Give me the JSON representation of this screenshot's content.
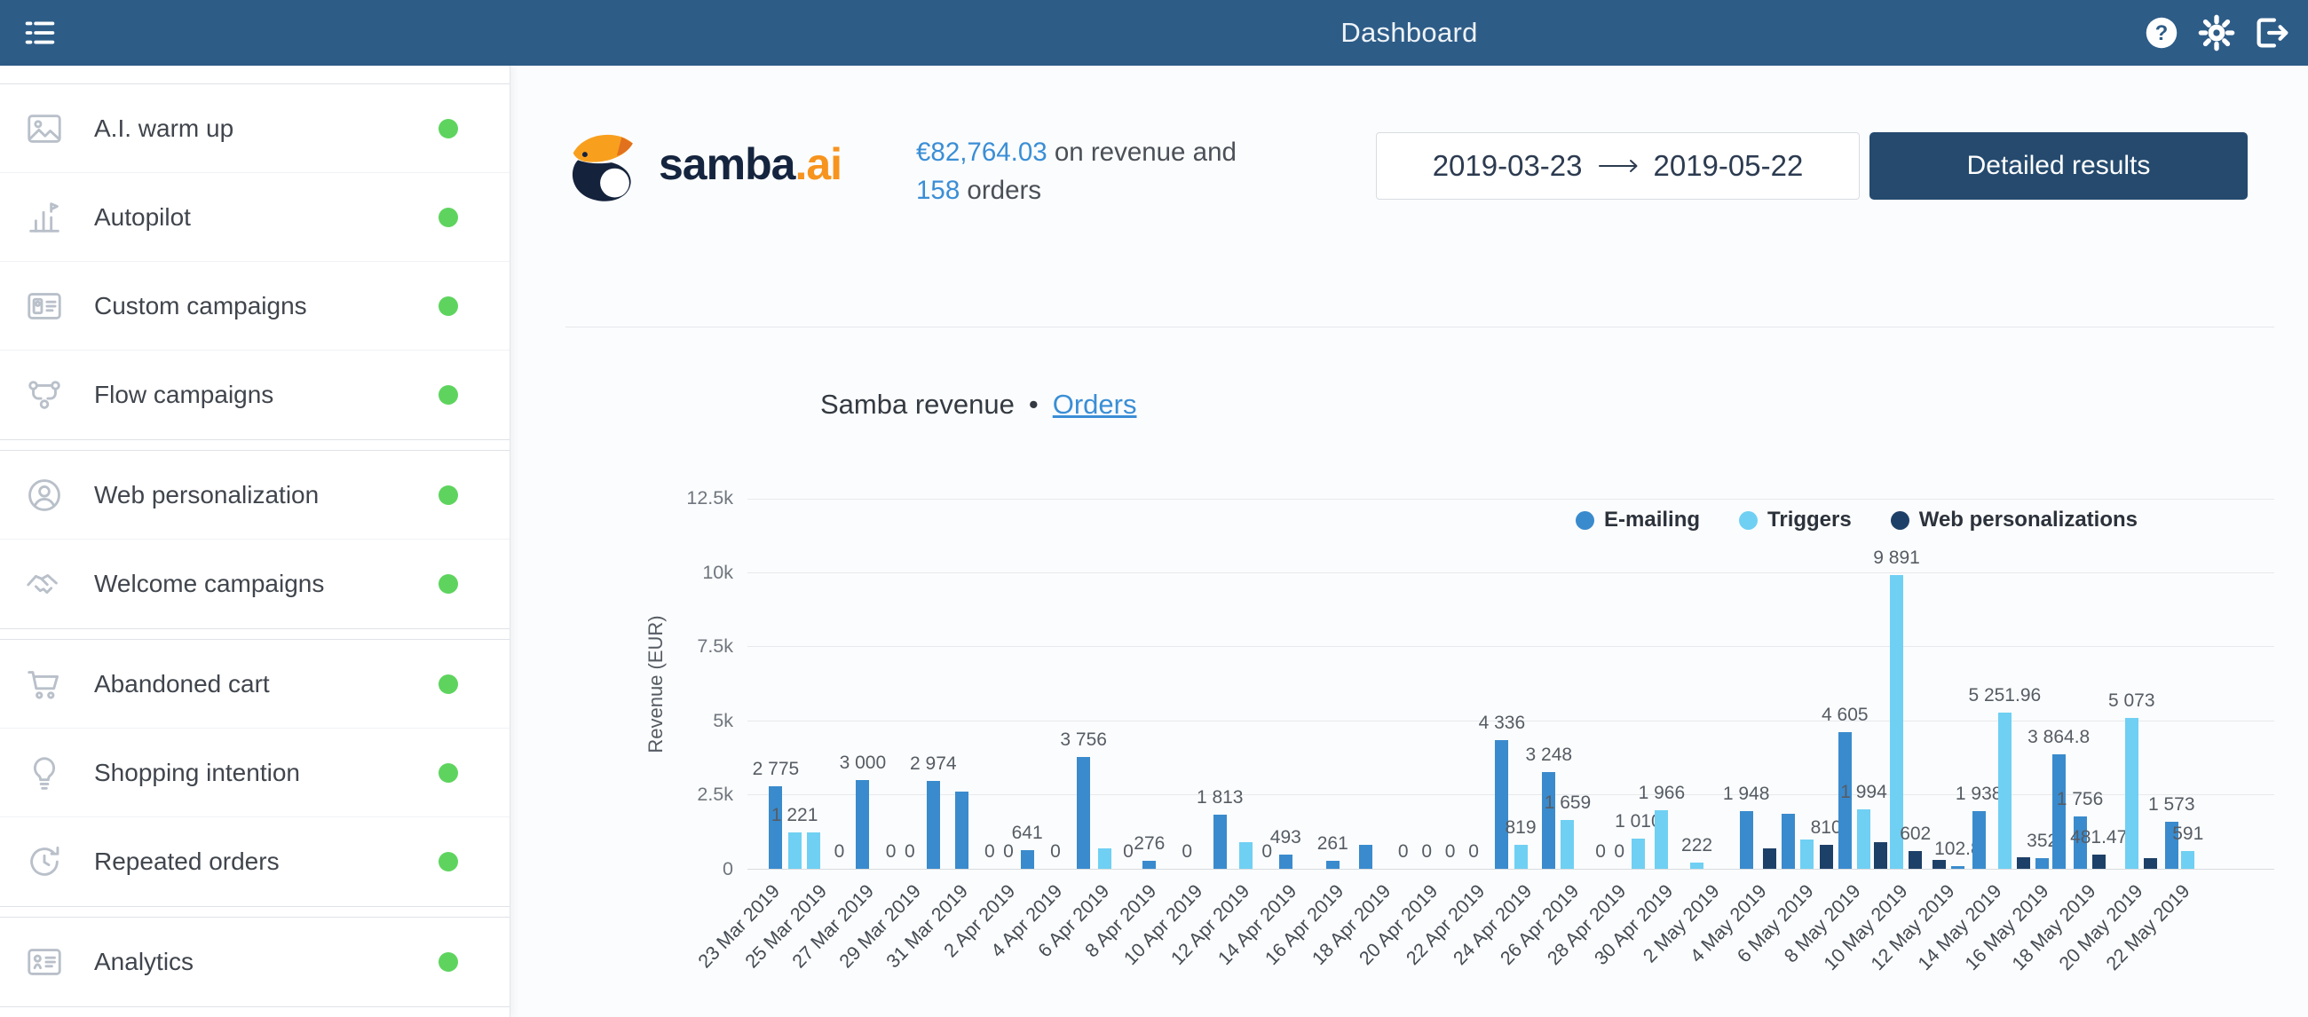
{
  "topbar": {
    "title": "Dashboard"
  },
  "sidebar": {
    "status_color": "#5ed45e",
    "sections": [
      {
        "items": [
          {
            "label": "A.I. warm up",
            "icon": "image-icon"
          },
          {
            "label": "Autopilot",
            "icon": "chart-flag-icon"
          },
          {
            "label": "Custom campaigns",
            "icon": "id-card-icon"
          },
          {
            "label": "Flow campaigns",
            "icon": "flow-icon"
          }
        ]
      },
      {
        "items": [
          {
            "label": "Web personalization",
            "icon": "person-circle-icon"
          },
          {
            "label": "Welcome campaigns",
            "icon": "handshake-icon"
          }
        ]
      },
      {
        "items": [
          {
            "label": "Abandoned cart",
            "icon": "cart-icon"
          },
          {
            "label": "Shopping intention",
            "icon": "bulb-icon"
          },
          {
            "label": "Repeated orders",
            "icon": "refresh-clock-icon"
          }
        ]
      },
      {
        "items": [
          {
            "label": "Analytics",
            "icon": "card-list-icon"
          }
        ]
      }
    ]
  },
  "header": {
    "logo": {
      "name": "samba",
      "tld": ".ai"
    },
    "revenue": {
      "amount": "€82,764.03",
      "text": " on revenue and"
    },
    "orders": {
      "count": "158",
      "text": " orders"
    },
    "date_range": {
      "start": "2019-03-23",
      "end": "2019-05-22"
    },
    "detailed_button": "Detailed results"
  },
  "chart_header": {
    "title": "Samba revenue",
    "bullet": "•",
    "link": "Orders"
  },
  "chart_data": {
    "type": "bar",
    "title": "Samba revenue",
    "ylabel": "Revenue (EUR)",
    "ylim": [
      0,
      12500
    ],
    "grid": true,
    "legend_position": "top-right",
    "yticks": [
      {
        "value": 0,
        "label": "0"
      },
      {
        "value": 2500,
        "label": "2.5k"
      },
      {
        "value": 5000,
        "label": "5k"
      },
      {
        "value": 7500,
        "label": "7.5k"
      },
      {
        "value": 10000,
        "label": "10k"
      },
      {
        "value": 12500,
        "label": "12.5k"
      }
    ],
    "legend": [
      {
        "key": "emailing",
        "name": "E-mailing",
        "color": "#3a8bcd"
      },
      {
        "key": "triggers",
        "name": "Triggers",
        "color": "#6fd0f3"
      },
      {
        "key": "webp",
        "name": "Web personalizations",
        "color": "#1d4068"
      }
    ],
    "xticks": [
      {
        "day": 0,
        "label": "23 Mar 2019"
      },
      {
        "day": 2,
        "label": "25 Mar 2019"
      },
      {
        "day": 4,
        "label": "27 Mar 2019"
      },
      {
        "day": 6,
        "label": "29 Mar 2019"
      },
      {
        "day": 8,
        "label": "31 Mar 2019"
      },
      {
        "day": 10,
        "label": "2 Apr 2019"
      },
      {
        "day": 12,
        "label": "4 Apr 2019"
      },
      {
        "day": 14,
        "label": "6 Apr 2019"
      },
      {
        "day": 16,
        "label": "8 Apr 2019"
      },
      {
        "day": 18,
        "label": "10 Apr 2019"
      },
      {
        "day": 20,
        "label": "12 Apr 2019"
      },
      {
        "day": 22,
        "label": "14 Apr 2019"
      },
      {
        "day": 24,
        "label": "16 Apr 2019"
      },
      {
        "day": 26,
        "label": "18 Apr 2019"
      },
      {
        "day": 28,
        "label": "20 Apr 2019"
      },
      {
        "day": 30,
        "label": "22 Apr 2019"
      },
      {
        "day": 32,
        "label": "24 Apr 2019"
      },
      {
        "day": 34,
        "label": "26 Apr 2019"
      },
      {
        "day": 36,
        "label": "28 Apr 2019"
      },
      {
        "day": 38,
        "label": "30 Apr 2019"
      },
      {
        "day": 40,
        "label": "2 May 2019"
      },
      {
        "day": 42,
        "label": "4 May 2019"
      },
      {
        "day": 44,
        "label": "6 May 2019"
      },
      {
        "day": 46,
        "label": "8 May 2019"
      },
      {
        "day": 48,
        "label": "10 May 2019"
      },
      {
        "day": 50,
        "label": "12 May 2019"
      },
      {
        "day": 52,
        "label": "14 May 2019"
      },
      {
        "day": 54,
        "label": "16 May 2019"
      },
      {
        "day": 56,
        "label": "18 May 2019"
      },
      {
        "day": 58,
        "label": "20 May 2019"
      },
      {
        "day": 60,
        "label": "22 May 2019"
      }
    ],
    "bars": [
      {
        "day": 0.3,
        "series": "emailing",
        "value": 2775,
        "label": "2 775"
      },
      {
        "day": 1.1,
        "series": "triggers",
        "value": 1221,
        "label": "1 221"
      },
      {
        "day": 1.9,
        "series": "triggers",
        "value": 1230
      },
      {
        "day": 3.0,
        "series": "emailing",
        "value": 0,
        "label": "0"
      },
      {
        "day": 4.0,
        "series": "emailing",
        "value": 3000,
        "label": "3 000"
      },
      {
        "day": 5.2,
        "series": "emailing",
        "value": 0,
        "label": "0"
      },
      {
        "day": 6.0,
        "series": "emailing",
        "value": 0,
        "label": "0"
      },
      {
        "day": 7.0,
        "series": "emailing",
        "value": 2974,
        "label": "2 974"
      },
      {
        "day": 8.2,
        "series": "emailing",
        "value": 2600
      },
      {
        "day": 9.4,
        "series": "emailing",
        "value": 0,
        "label": "0"
      },
      {
        "day": 10.2,
        "series": "emailing",
        "value": 0,
        "label": "0"
      },
      {
        "day": 11.0,
        "series": "emailing",
        "value": 641,
        "label": "641"
      },
      {
        "day": 12.2,
        "series": "emailing",
        "value": 0,
        "label": "0"
      },
      {
        "day": 13.4,
        "series": "emailing",
        "value": 3756,
        "label": "3 756"
      },
      {
        "day": 14.3,
        "series": "triggers",
        "value": 700
      },
      {
        "day": 15.3,
        "series": "emailing",
        "value": 0,
        "label": "0"
      },
      {
        "day": 16.2,
        "series": "emailing",
        "value": 276,
        "label": "276"
      },
      {
        "day": 17.8,
        "series": "emailing",
        "value": 0,
        "label": "0"
      },
      {
        "day": 19.2,
        "series": "emailing",
        "value": 1813,
        "label": "1 813"
      },
      {
        "day": 20.3,
        "series": "triggers",
        "value": 900
      },
      {
        "day": 21.2,
        "series": "emailing",
        "value": 0,
        "label": "0"
      },
      {
        "day": 22.0,
        "series": "emailing",
        "value": 493,
        "label": "493"
      },
      {
        "day": 24.0,
        "series": "emailing",
        "value": 261,
        "label": "261"
      },
      {
        "day": 25.4,
        "series": "emailing",
        "value": 800
      },
      {
        "day": 27.0,
        "series": "emailing",
        "value": 0,
        "label": "0"
      },
      {
        "day": 28.0,
        "series": "emailing",
        "value": 0,
        "label": "0"
      },
      {
        "day": 29.0,
        "series": "emailing",
        "value": 0,
        "label": "0"
      },
      {
        "day": 30.0,
        "series": "emailing",
        "value": 0,
        "label": "0"
      },
      {
        "day": 31.2,
        "series": "emailing",
        "value": 4336,
        "label": "4 336"
      },
      {
        "day": 32.0,
        "series": "triggers",
        "value": 819,
        "label": "819"
      },
      {
        "day": 33.2,
        "series": "emailing",
        "value": 3248,
        "label": "3 248"
      },
      {
        "day": 34.0,
        "series": "triggers",
        "value": 1659,
        "label": "1 659"
      },
      {
        "day": 35.4,
        "series": "emailing",
        "value": 0,
        "label": "0"
      },
      {
        "day": 36.2,
        "series": "emailing",
        "value": 0,
        "label": "0"
      },
      {
        "day": 37.0,
        "series": "triggers",
        "value": 1010,
        "label": "1 010"
      },
      {
        "day": 38.0,
        "series": "triggers",
        "value": 1966,
        "label": "1 966"
      },
      {
        "day": 39.5,
        "series": "triggers",
        "value": 222,
        "label": "222"
      },
      {
        "day": 41.6,
        "series": "emailing",
        "value": 1948,
        "label": "1 948"
      },
      {
        "day": 42.6,
        "series": "webp",
        "value": 700
      },
      {
        "day": 43.4,
        "series": "emailing",
        "value": 1850
      },
      {
        "day": 44.2,
        "series": "triggers",
        "value": 1000
      },
      {
        "day": 45.0,
        "series": "webp",
        "value": 810,
        "label": "810"
      },
      {
        "day": 45.8,
        "series": "emailing",
        "value": 4605,
        "label": "4 605"
      },
      {
        "day": 46.6,
        "series": "triggers",
        "value": 1994,
        "label": "1 994"
      },
      {
        "day": 47.3,
        "series": "webp",
        "value": 900
      },
      {
        "day": 48.0,
        "series": "triggers",
        "value": 9891,
        "label": "9 891"
      },
      {
        "day": 48.8,
        "series": "webp",
        "value": 602,
        "label": "602"
      },
      {
        "day": 49.8,
        "series": "webp",
        "value": 300
      },
      {
        "day": 50.6,
        "series": "emailing",
        "value": 102.8,
        "label": "102.8"
      },
      {
        "day": 51.5,
        "series": "emailing",
        "value": 1938,
        "label": "1 938"
      },
      {
        "day": 52.6,
        "series": "triggers",
        "value": 5251.96,
        "label": "5 251.96"
      },
      {
        "day": 53.4,
        "series": "webp",
        "value": 400
      },
      {
        "day": 54.2,
        "series": "emailing",
        "value": 352,
        "label": "352"
      },
      {
        "day": 54.9,
        "series": "emailing",
        "value": 3864.8,
        "label": "3 864.8"
      },
      {
        "day": 55.8,
        "series": "emailing",
        "value": 1756,
        "label": "1 756"
      },
      {
        "day": 56.6,
        "series": "webp",
        "value": 481.47,
        "label": "481.47"
      },
      {
        "day": 58.0,
        "series": "triggers",
        "value": 5073,
        "label": "5 073"
      },
      {
        "day": 58.8,
        "series": "webp",
        "value": 350
      },
      {
        "day": 59.7,
        "series": "emailing",
        "value": 1573,
        "label": "1 573"
      },
      {
        "day": 60.4,
        "series": "triggers",
        "value": 591,
        "label": "591"
      }
    ]
  }
}
